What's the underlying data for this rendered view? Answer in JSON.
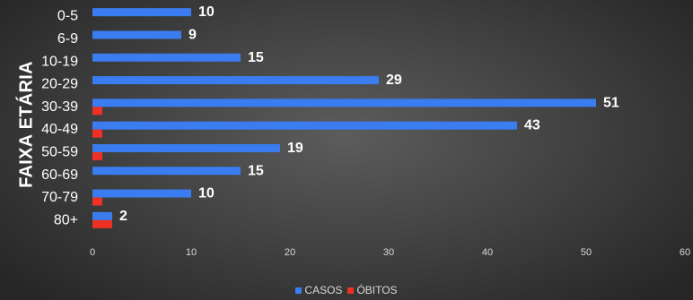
{
  "colors": {
    "casos": "#3b7df0",
    "obitos": "#ee3124"
  },
  "chart_data": {
    "type": "bar",
    "orientation": "horizontal",
    "title": "",
    "xlabel": "",
    "ylabel": "FAIXA ETÁRIA",
    "categories": [
      "0-5",
      "6-9",
      "10-19",
      "20-29",
      "30-39",
      "40-49",
      "50-59",
      "60-69",
      "70-79",
      "80+"
    ],
    "series": [
      {
        "name": "CASOS",
        "values": [
          10,
          9,
          15,
          29,
          51,
          43,
          19,
          15,
          10,
          2
        ],
        "data_labels": [
          "10",
          "9",
          "15",
          "29",
          "51",
          "43",
          "19",
          "15",
          "10",
          "2"
        ]
      },
      {
        "name": "ÓBITOS",
        "values": [
          0,
          0,
          0,
          0,
          1,
          1,
          1,
          0,
          1,
          2
        ]
      }
    ],
    "xlim": [
      0,
      60
    ],
    "xticks": [
      0,
      10,
      20,
      30,
      40,
      50,
      60
    ],
    "grid": false,
    "legend_position": "bottom"
  }
}
